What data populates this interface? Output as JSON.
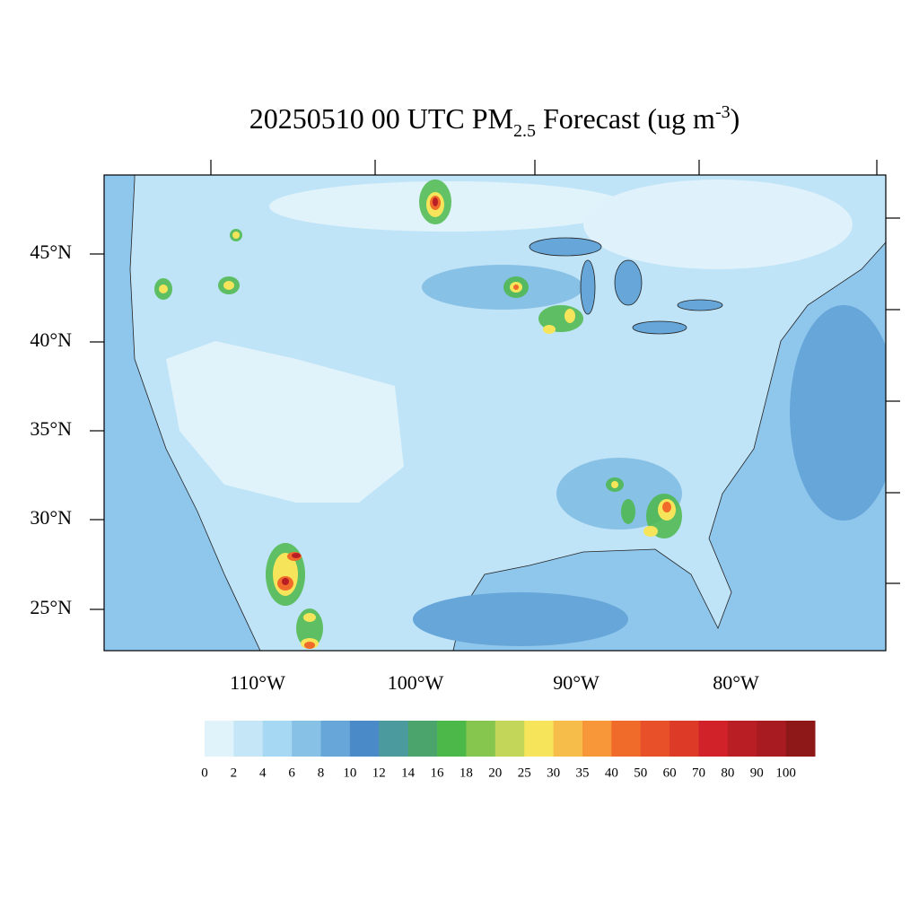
{
  "title": {
    "main": "20250510 00 UTC PM",
    "subscript": "2.5",
    "middle": " Forecast (ug m",
    "superscript": "-3",
    "end": ")"
  },
  "map": {
    "lat_labels": [
      "45°N",
      "40°N",
      "35°N",
      "30°N",
      "25°N"
    ],
    "lon_labels": [
      "110°W",
      "100°W",
      "90°W",
      "80°W"
    ]
  },
  "colorbar": {
    "levels": [
      0,
      2,
      4,
      6,
      8,
      10,
      12,
      14,
      16,
      18,
      20,
      25,
      30,
      35,
      40,
      50,
      60,
      70,
      80,
      90,
      100
    ],
    "colors": [
      "#e0f3fb",
      "#c4e6f7",
      "#a6d8f3",
      "#88c1e6",
      "#66a6d8",
      "#4a8ac8",
      "#4a9a9e",
      "#4aa46c",
      "#4cb84a",
      "#86c54e",
      "#c3d65a",
      "#f6e55a",
      "#f7bd4a",
      "#f7973a",
      "#f06a2a",
      "#e8502a",
      "#de3a28",
      "#d02228",
      "#b81e24",
      "#a81b20",
      "#8e1818"
    ]
  }
}
